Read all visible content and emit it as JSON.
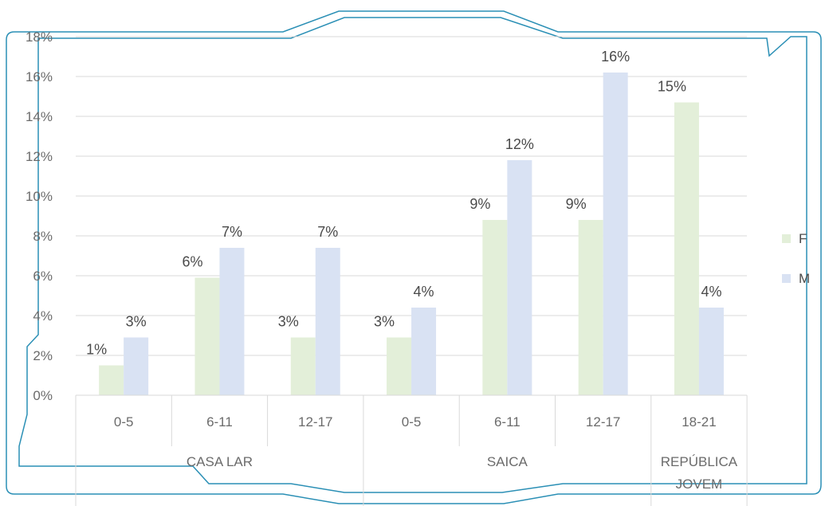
{
  "chart_data": {
    "type": "bar",
    "groups": [
      {
        "name": "CASA LAR",
        "span": 3
      },
      {
        "name": "SAICA",
        "span": 3
      },
      {
        "name": "REPÚBLICA JOVEM",
        "lines": [
          "REPÚBLICA",
          "JOVEM"
        ],
        "span": 1
      }
    ],
    "categories": [
      "0-5",
      "6-11",
      "12-17",
      "0-5",
      "6-11",
      "12-17",
      "18-21"
    ],
    "series": [
      {
        "name": "F",
        "values": [
          1.5,
          5.9,
          2.9,
          2.9,
          8.8,
          8.8,
          14.7
        ],
        "labels": [
          "1%",
          "6%",
          "3%",
          "3%",
          "9%",
          "9%",
          "15%"
        ]
      },
      {
        "name": "M",
        "values": [
          2.9,
          7.4,
          7.4,
          4.4,
          11.8,
          16.2,
          4.4
        ],
        "labels": [
          "3%",
          "7%",
          "7%",
          "4%",
          "12%",
          "16%",
          "4%"
        ]
      }
    ],
    "ylim": [
      0,
      18
    ],
    "yticks": [
      0,
      2,
      4,
      6,
      8,
      10,
      12,
      14,
      16,
      18
    ],
    "ytick_labels": [
      "0%",
      "2%",
      "4%",
      "6%",
      "8%",
      "10%",
      "12%",
      "14%",
      "16%",
      "18%"
    ],
    "grid": true,
    "legend": "right",
    "colors": {
      "F": "#e3efd9",
      "M": "#d9e2f3",
      "grid": "#d9d9d9",
      "frame": "#2a8fb5"
    }
  }
}
